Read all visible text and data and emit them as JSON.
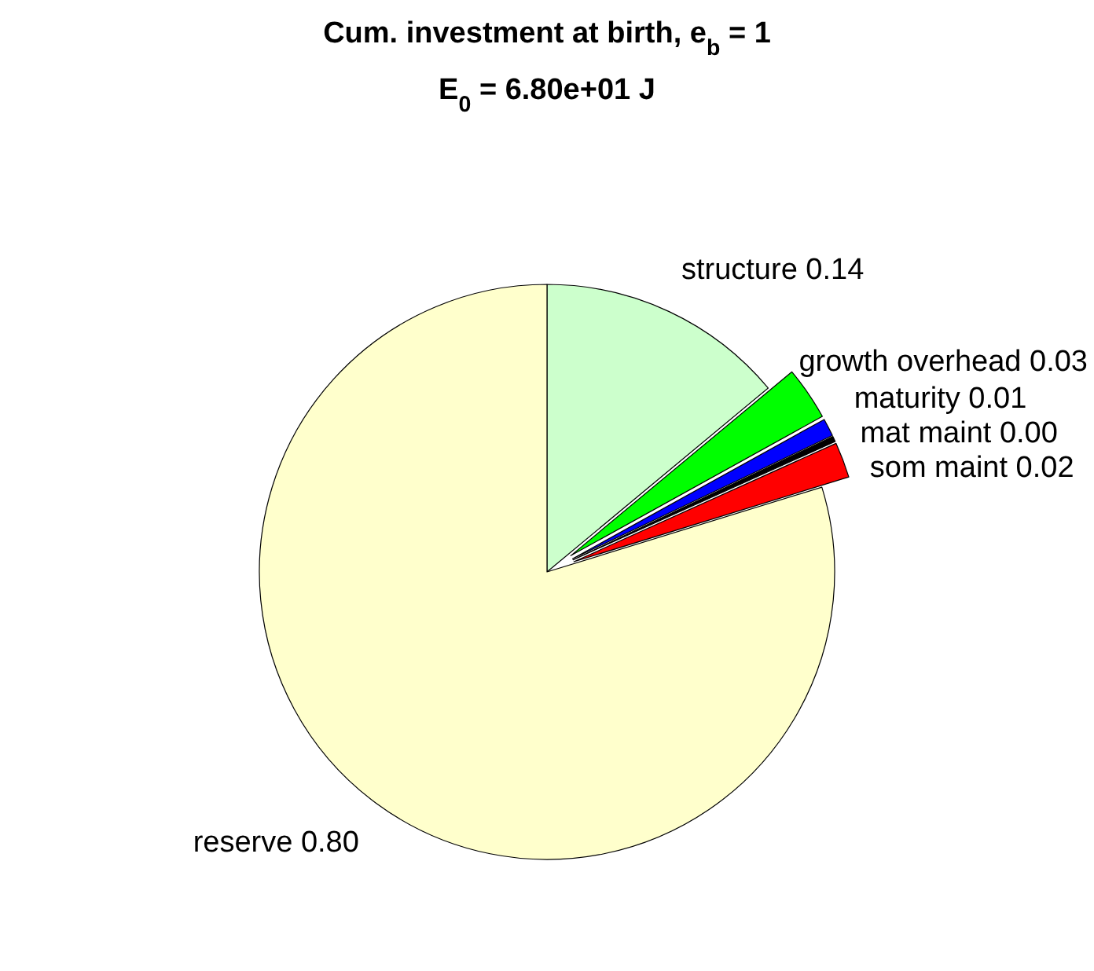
{
  "chart_data": {
    "type": "pie",
    "title": "Cum. investment at birth, e$_{b}$ = 1",
    "subtitle": "E$_{0}$ = 6.80e+01 J",
    "categories": [
      "structure",
      "growth overhead",
      "maturity",
      "mat maint",
      "som maint",
      "reserve"
    ],
    "values": [
      0.14,
      0.03,
      0.01,
      0.003,
      0.02,
      0.8
    ],
    "value_labels": [
      "0.14",
      "0.03",
      "0.01",
      "0.00",
      "0.02",
      "0.80"
    ],
    "colors": [
      "#ccffcc",
      "#00ff00",
      "#0000ff",
      "#000000",
      "#ff0000",
      "#ffffcc"
    ]
  }
}
